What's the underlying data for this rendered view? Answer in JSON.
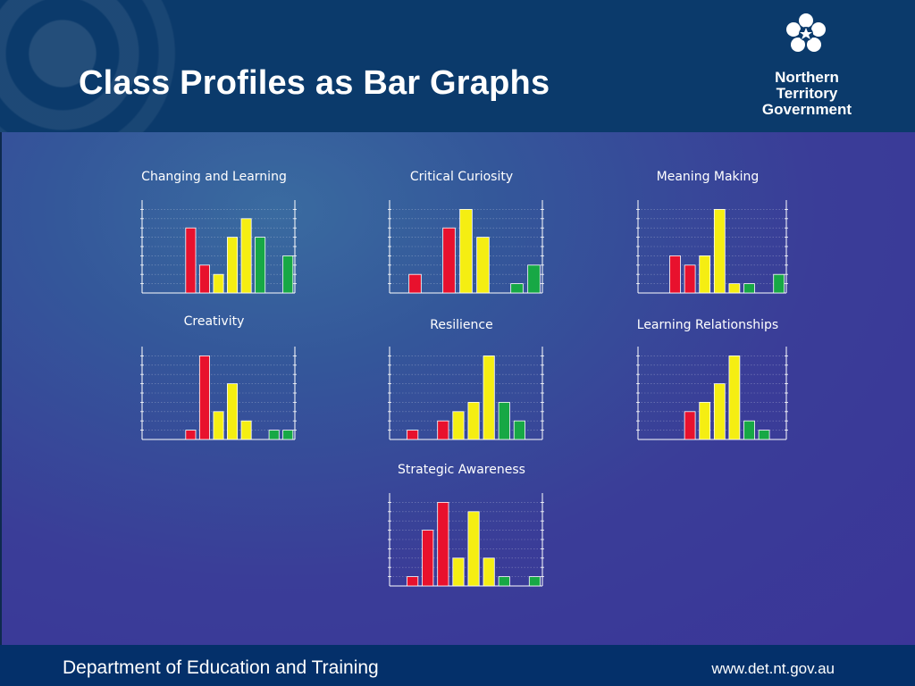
{
  "slide": {
    "title": "Class Profiles as Bar Graphs",
    "logo_lines": [
      "Northern",
      "Territory",
      "Government"
    ],
    "footer_left": "Department of Education and Training",
    "footer_right": "www.det.nt.gov.au"
  },
  "colors": {
    "red": "#e8112d",
    "yellow": "#f5ee12",
    "green": "#17a845",
    "header": "#0b3a6b",
    "footer": "#04306a"
  },
  "chart_data": [
    {
      "type": "bar",
      "title": "Changing and Learning",
      "values": [
        0,
        0,
        0,
        7,
        3,
        2,
        6,
        8,
        6,
        0,
        4
      ],
      "colors": [
        "red",
        "red",
        "red",
        "red",
        "red",
        "yellow",
        "yellow",
        "yellow",
        "green",
        "green",
        "green"
      ],
      "ylim": [
        0,
        10
      ],
      "grid": true
    },
    {
      "type": "bar",
      "title": "Critical Curiosity",
      "values": [
        0,
        2,
        0,
        7,
        9,
        6,
        0,
        1,
        3
      ],
      "colors": [
        "red",
        "red",
        "red",
        "red",
        "yellow",
        "yellow",
        "green",
        "green",
        "green"
      ],
      "ylim": [
        0,
        10
      ],
      "grid": true
    },
    {
      "type": "bar",
      "title": "Meaning Making",
      "values": [
        0,
        0,
        4,
        3,
        4,
        9,
        1,
        1,
        0,
        2
      ],
      "colors": [
        "red",
        "red",
        "red",
        "red",
        "yellow",
        "yellow",
        "yellow",
        "green",
        "green",
        "green"
      ],
      "ylim": [
        0,
        10
      ],
      "grid": true
    },
    {
      "type": "bar",
      "title": "Creativity",
      "values": [
        0,
        0,
        0,
        1,
        9,
        3,
        6,
        2,
        0,
        1,
        1
      ],
      "colors": [
        "red",
        "red",
        "red",
        "red",
        "red",
        "yellow",
        "yellow",
        "yellow",
        "green",
        "green",
        "green"
      ],
      "ylim": [
        0,
        10
      ],
      "grid": true
    },
    {
      "type": "bar",
      "title": "Resilience",
      "values": [
        0,
        1,
        0,
        2,
        3,
        4,
        9,
        4,
        2,
        0
      ],
      "colors": [
        "red",
        "red",
        "red",
        "red",
        "yellow",
        "yellow",
        "yellow",
        "green",
        "green",
        "green"
      ],
      "ylim": [
        0,
        10
      ],
      "grid": true
    },
    {
      "type": "bar",
      "title": "Learning Relationships",
      "values": [
        0,
        0,
        0,
        3,
        4,
        6,
        9,
        2,
        1,
        0
      ],
      "colors": [
        "red",
        "red",
        "red",
        "red",
        "yellow",
        "yellow",
        "yellow",
        "green",
        "green",
        "green"
      ],
      "ylim": [
        0,
        10
      ],
      "grid": true
    },
    {
      "type": "bar",
      "title": "Strategic Awareness",
      "values": [
        0,
        1,
        6,
        9,
        3,
        8,
        3,
        1,
        0,
        1
      ],
      "colors": [
        "red",
        "red",
        "red",
        "red",
        "yellow",
        "yellow",
        "yellow",
        "green",
        "green",
        "green"
      ],
      "ylim": [
        0,
        10
      ],
      "grid": true
    }
  ]
}
